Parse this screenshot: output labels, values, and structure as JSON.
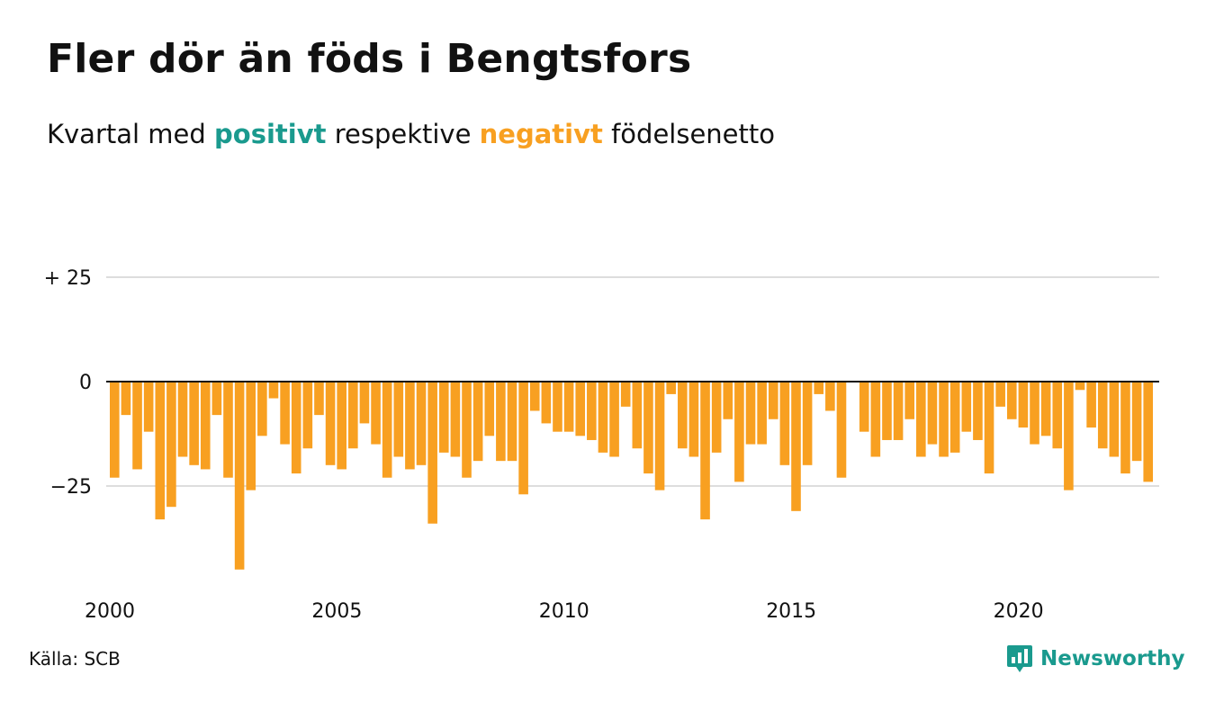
{
  "title": "Fler dör än föds i Bengtsfors",
  "subtitle": {
    "before": "Kvartal med",
    "positive": "positivt",
    "middle": "respektive",
    "negative": "negativt",
    "after": "födelsenetto"
  },
  "source": "Källa: SCB",
  "brand": {
    "name": "Newsworthy",
    "icon": "bar-chart-speech-bubble-icon"
  },
  "colors": {
    "positive": "#1a9a8e",
    "negative": "#f8a021",
    "grid": "#dddddd",
    "brand": "#1a9a8e"
  },
  "chart_data": {
    "type": "bar",
    "title": "Fler dör än föds i Bengtsfors",
    "xlabel": "",
    "ylabel": "",
    "ylim": [
      -46,
      25
    ],
    "yticks": [
      {
        "value": 25,
        "label": "+ 25"
      },
      {
        "value": 0,
        "label": "0"
      },
      {
        "value": -25,
        "label": "−25"
      }
    ],
    "xticks": [
      {
        "year": 2000,
        "label": "2000"
      },
      {
        "year": 2005,
        "label": "2005"
      },
      {
        "year": 2010,
        "label": "2010"
      },
      {
        "year": 2015,
        "label": "2015"
      },
      {
        "year": 2020,
        "label": "2020"
      }
    ],
    "grid": true,
    "start_year": 2000,
    "series": [
      {
        "values": [
          -23,
          -8,
          -21,
          -12,
          -33,
          -30,
          -18,
          -20,
          -21,
          -8,
          -23,
          -45,
          -26,
          -13,
          -4,
          -15,
          -22,
          -16,
          -8,
          -20,
          -21,
          -16,
          -10,
          -15,
          -23,
          -18,
          -21,
          -20,
          -34,
          -17,
          -18,
          -23,
          -19,
          -13,
          -19,
          -19,
          -27,
          -7,
          -10,
          -12,
          -12,
          -13,
          -14,
          -17,
          -18,
          -6,
          -16,
          -22,
          -26,
          -3,
          -16,
          -18,
          -33,
          -17,
          -9,
          -24,
          -15,
          -15,
          -9,
          -20,
          -31,
          -20,
          -3,
          -7,
          -23,
          0,
          -12,
          -18,
          -14,
          -14,
          -9,
          -18,
          -15,
          -18,
          -17,
          -12,
          -14,
          -22,
          -6,
          -9,
          -11,
          -15,
          -13,
          -16,
          -26,
          -2,
          -11,
          -16,
          -18,
          -22,
          -19,
          -24
        ]
      }
    ]
  }
}
